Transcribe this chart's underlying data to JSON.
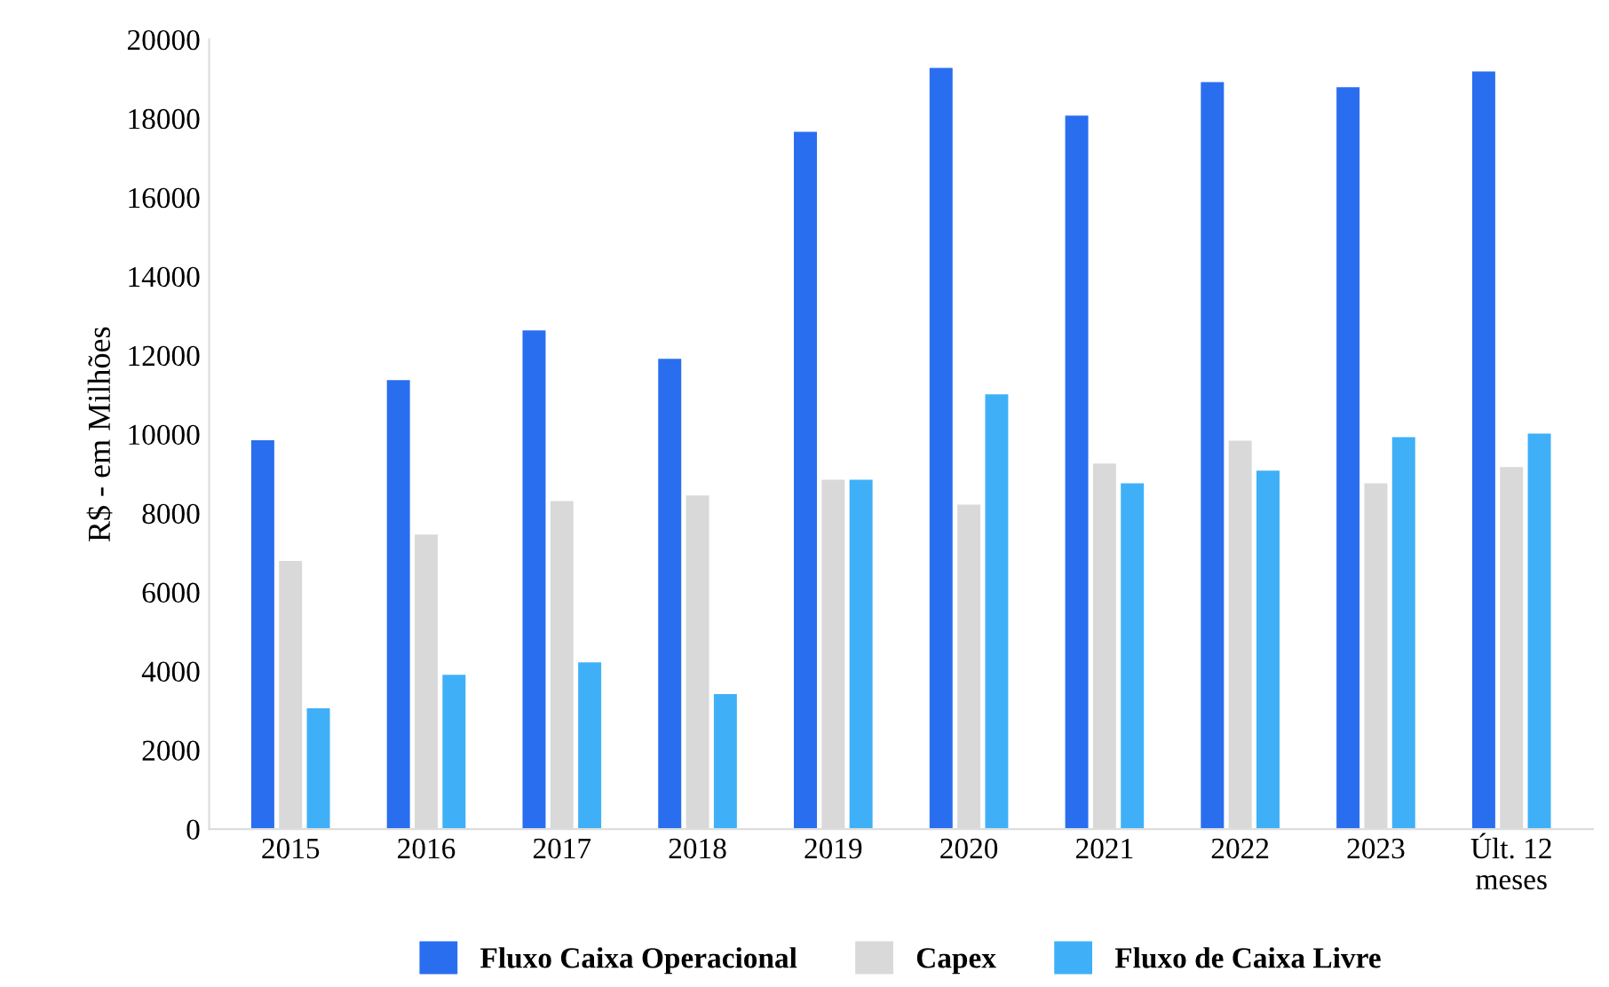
{
  "chart_data": {
    "type": "bar",
    "ylabel": "R$ - em Milhões",
    "categories": [
      "2015",
      "2016",
      "2017",
      "2018",
      "2019",
      "2020",
      "2021",
      "2022",
      "2023",
      "Últ. 12\nmeses"
    ],
    "series": [
      {
        "name": "Fluxo Caixa Operacional",
        "color": "#2a6ef0",
        "values": [
          9850,
          11370,
          12630,
          11910,
          17660,
          19280,
          18070,
          18920,
          18790,
          19190
        ]
      },
      {
        "name": "Capex",
        "color": "#d9d9d9",
        "values": [
          6790,
          7460,
          8310,
          8450,
          8850,
          8220,
          9260,
          9840,
          8760,
          9170
        ]
      },
      {
        "name": "Fluxo de Caixa Livre",
        "color": "#3fb0f7",
        "values": [
          3060,
          3910,
          4220,
          3420,
          8850,
          11010,
          8760,
          9080,
          9930,
          10020
        ]
      }
    ],
    "ylim": [
      0,
      20000
    ],
    "yticks": [
      0,
      2000,
      4000,
      6000,
      8000,
      10000,
      12000,
      14000,
      16000,
      18000,
      20000
    ],
    "grid": false,
    "legend": "bottom"
  }
}
